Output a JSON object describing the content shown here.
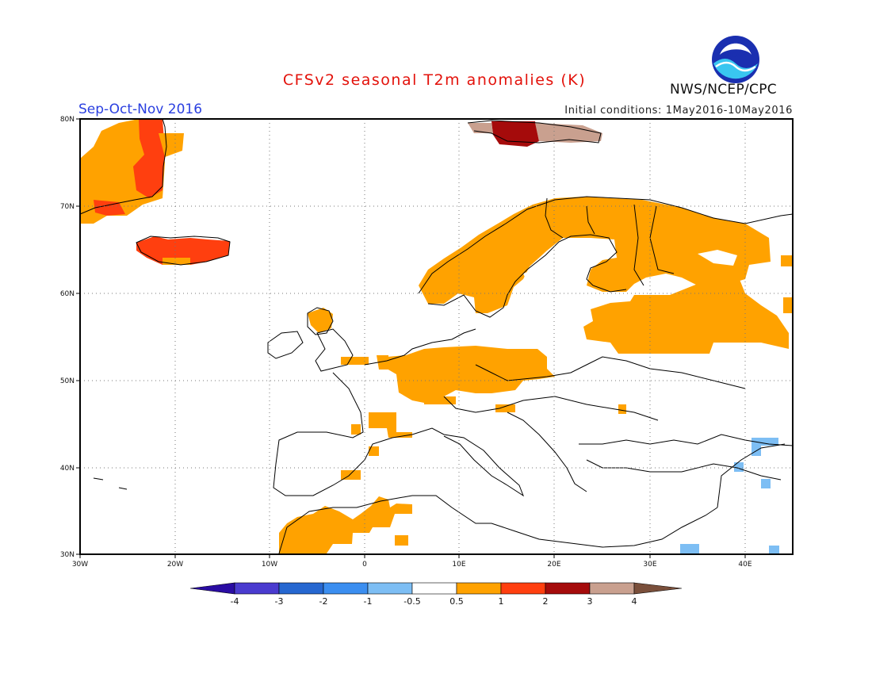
{
  "title": "CFSv2 seasonal T2m anomalies (K)",
  "season": "Sep-Oct-Nov 2016",
  "initial_conditions": "Initial conditions: 1May2016-10May2016",
  "agency": "NWS/NCEP/CPC",
  "logo_text": "NOAA",
  "lon_ticks": [
    "30W",
    "20W",
    "10W",
    "0",
    "10E",
    "20E",
    "30E",
    "40E"
  ],
  "lat_ticks": [
    "80N",
    "70N",
    "60N",
    "50N",
    "40N",
    "30N"
  ],
  "colorbar": {
    "labels": [
      "-4",
      "-3",
      "-2",
      "-1",
      "-0.5",
      "0.5",
      "1",
      "2",
      "3",
      "4"
    ],
    "colors": [
      "#2a0ca3",
      "#4a3bcf",
      "#2667d0",
      "#3b8ef0",
      "#7dbef4",
      "#ffffff",
      "#ffa200",
      "#ff3f0f",
      "#a50b0b",
      "#c9a08f",
      "#7a4f3b"
    ]
  },
  "colors": {
    "warm_0_5_1": "#ffa200",
    "warm_1_2": "#ff3f0f",
    "warm_2_3": "#a50b0b",
    "warm_3_4": "#c9a08f",
    "cool_m1_m0_5": "#7dbef4"
  }
}
